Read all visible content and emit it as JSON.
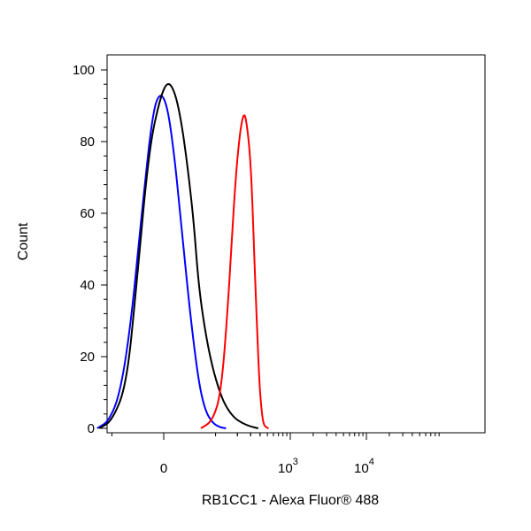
{
  "chart_data": {
    "type": "line",
    "title": "",
    "xlabel": "RB1CC1 - Alexa Fluor® 488",
    "ylabel": "Count",
    "x_scale": "biexponential",
    "ylim": [
      0,
      100
    ],
    "y_ticks": [
      0,
      20,
      40,
      60,
      80,
      100
    ],
    "x_ticks": [
      {
        "value": 0,
        "base": "0",
        "exp": ""
      },
      {
        "value": 1000,
        "base": "10",
        "exp": "3"
      },
      {
        "value": 10000,
        "base": "10",
        "exp": "4"
      }
    ],
    "series": [
      {
        "color": "#0000ff",
        "points": [
          [
            -160,
            0
          ],
          [
            -110,
            2
          ],
          [
            -75,
            10
          ],
          [
            -50,
            30
          ],
          [
            -30,
            62
          ],
          [
            -15,
            88
          ],
          [
            -5,
            94
          ],
          [
            5,
            90
          ],
          [
            15,
            75
          ],
          [
            25,
            55
          ],
          [
            40,
            30
          ],
          [
            55,
            13
          ],
          [
            70,
            5
          ],
          [
            90,
            1.5
          ],
          [
            115,
            0.3
          ],
          [
            140,
            0
          ]
        ]
      },
      {
        "color": "#000000",
        "points": [
          [
            -150,
            0
          ],
          [
            -100,
            2
          ],
          [
            -60,
            12
          ],
          [
            -40,
            40
          ],
          [
            -20,
            78
          ],
          [
            -5,
            92
          ],
          [
            5,
            97
          ],
          [
            15,
            94
          ],
          [
            25,
            85
          ],
          [
            35,
            72
          ],
          [
            45,
            58
          ],
          [
            55,
            40
          ],
          [
            70,
            27
          ],
          [
            90,
            17
          ],
          [
            115,
            10
          ],
          [
            140,
            6
          ],
          [
            180,
            3
          ],
          [
            230,
            1.5
          ],
          [
            300,
            0.5
          ],
          [
            380,
            0
          ]
        ]
      },
      {
        "color": "#ff0000",
        "points": [
          [
            60,
            0
          ],
          [
            90,
            2
          ],
          [
            120,
            10
          ],
          [
            150,
            35
          ],
          [
            170,
            55
          ],
          [
            190,
            70
          ],
          [
            210,
            80
          ],
          [
            230,
            86
          ],
          [
            250,
            88
          ],
          [
            270,
            84
          ],
          [
            290,
            78
          ],
          [
            310,
            68
          ],
          [
            330,
            52
          ],
          [
            350,
            38
          ],
          [
            370,
            25
          ],
          [
            390,
            14
          ],
          [
            410,
            7
          ],
          [
            430,
            3
          ],
          [
            450,
            1
          ],
          [
            480,
            0.3
          ],
          [
            520,
            0
          ]
        ]
      }
    ]
  }
}
